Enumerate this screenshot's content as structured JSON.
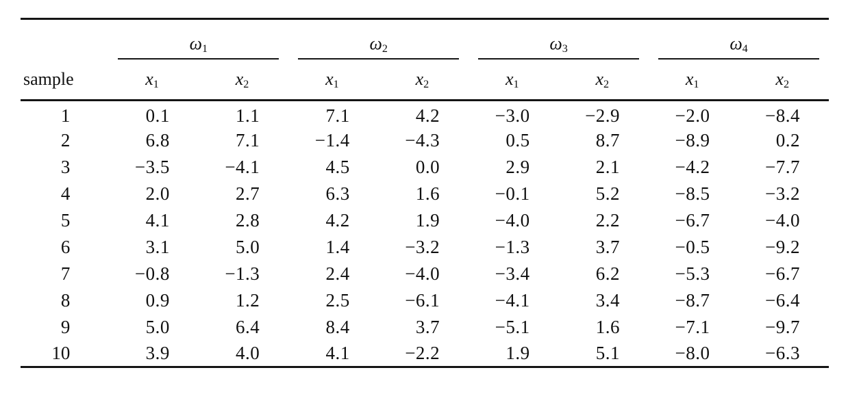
{
  "table": {
    "row_header_label": "sample",
    "groups": [
      {
        "base": "ω",
        "sub": "1"
      },
      {
        "base": "ω",
        "sub": "2"
      },
      {
        "base": "ω",
        "sub": "3"
      },
      {
        "base": "ω",
        "sub": "4"
      }
    ],
    "subcolumns": [
      {
        "base": "x",
        "sub": "1"
      },
      {
        "base": "x",
        "sub": "2"
      }
    ],
    "rows": [
      {
        "sample": "1",
        "values": [
          "0.1",
          "1.1",
          "7.1",
          "4.2",
          "−3.0",
          "−2.9",
          "−2.0",
          "−8.4"
        ]
      },
      {
        "sample": "2",
        "values": [
          "6.8",
          "7.1",
          "−1.4",
          "−4.3",
          "0.5",
          "8.7",
          "−8.9",
          "0.2"
        ]
      },
      {
        "sample": "3",
        "values": [
          "−3.5",
          "−4.1",
          "4.5",
          "0.0",
          "2.9",
          "2.1",
          "−4.2",
          "−7.7"
        ]
      },
      {
        "sample": "4",
        "values": [
          "2.0",
          "2.7",
          "6.3",
          "1.6",
          "−0.1",
          "5.2",
          "−8.5",
          "−3.2"
        ]
      },
      {
        "sample": "5",
        "values": [
          "4.1",
          "2.8",
          "4.2",
          "1.9",
          "−4.0",
          "2.2",
          "−6.7",
          "−4.0"
        ]
      },
      {
        "sample": "6",
        "values": [
          "3.1",
          "5.0",
          "1.4",
          "−3.2",
          "−1.3",
          "3.7",
          "−0.5",
          "−9.2"
        ]
      },
      {
        "sample": "7",
        "values": [
          "−0.8",
          "−1.3",
          "2.4",
          "−4.0",
          "−3.4",
          "6.2",
          "−5.3",
          "−6.7"
        ]
      },
      {
        "sample": "8",
        "values": [
          "0.9",
          "1.2",
          "2.5",
          "−6.1",
          "−4.1",
          "3.4",
          "−8.7",
          "−6.4"
        ]
      },
      {
        "sample": "9",
        "values": [
          "5.0",
          "6.4",
          "8.4",
          "3.7",
          "−5.1",
          "1.6",
          "−7.1",
          "−9.7"
        ]
      },
      {
        "sample": "10",
        "values": [
          "3.9",
          "4.0",
          "4.1",
          "−2.2",
          "1.9",
          "5.1",
          "−8.0",
          "−6.3"
        ]
      }
    ]
  }
}
